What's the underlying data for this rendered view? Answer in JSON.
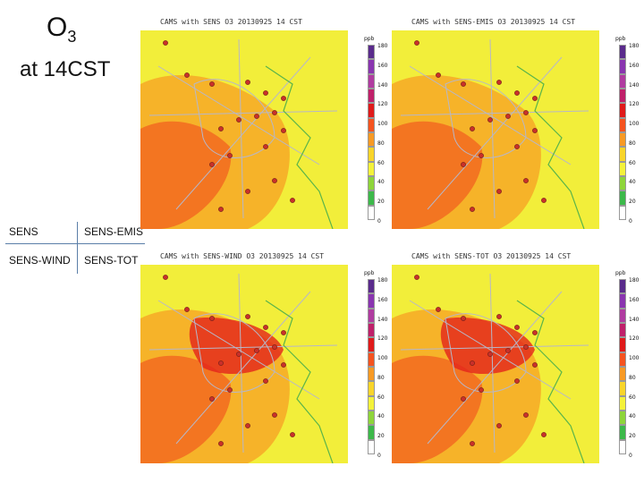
{
  "title": {
    "species": "O",
    "subscript": "3",
    "time": "at 14CST"
  },
  "legend": [
    {
      "label": "SENS"
    },
    {
      "label": "SENS-EMIS"
    },
    {
      "label": "SENS-WIND"
    },
    {
      "label": "SENS-TOT"
    }
  ],
  "panels": [
    {
      "title": "CAMS with SENS O3 20130925 14 CST",
      "scenario": "SENS"
    },
    {
      "title": "CAMS with SENS-EMIS O3 20130925 14 CST",
      "scenario": "SENS-EMIS"
    },
    {
      "title": "CAMS with SENS-WIND O3 20130925 14 CST",
      "scenario": "SENS-WIND"
    },
    {
      "title": "CAMS with SENS-TOT O3 20130925 14 CST",
      "scenario": "SENS-TOT"
    }
  ],
  "colorbar": {
    "unit": "ppb",
    "ticks": [
      "180",
      "160",
      "140",
      "120",
      "100",
      "80",
      "60",
      "40",
      "20",
      "0"
    ],
    "colors": [
      "#5a2b8c",
      "#8a35b0",
      "#b03ca0",
      "#c0206a",
      "#e01a1a",
      "#f5531f",
      "#f89a24",
      "#f9d52a",
      "#f4f23a",
      "#8ed53a",
      "#3cb94a",
      "#ffffff"
    ]
  },
  "map_colors": {
    "background": "#f2ee3a",
    "orange": "#f7a827",
    "deep_orange": "#f26a20",
    "red": "#e4231c",
    "monitor": "#c9302a",
    "highway": "#b7b7c8",
    "coast": "#5ab44a"
  }
}
